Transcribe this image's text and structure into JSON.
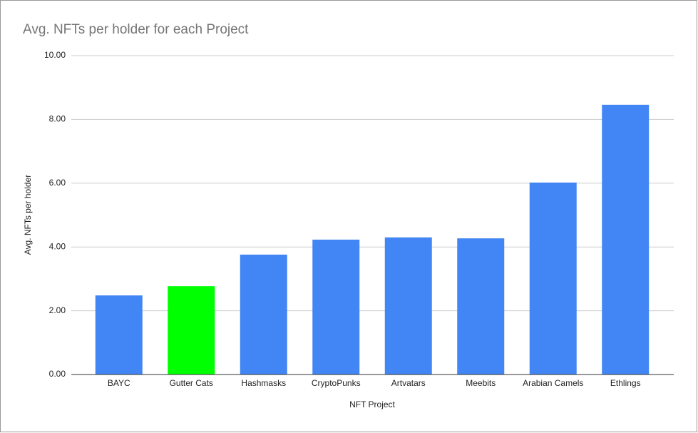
{
  "chart_data": {
    "type": "bar",
    "title": "Avg. NFTs per holder for each Project",
    "x_label": "NFT Project",
    "y_label": "Avg. NFTs per holder",
    "categories": [
      "BAYC",
      "Gutter Cats",
      "Hashmasks",
      "CryptoPunks",
      "Artvatars",
      "Meebits",
      "Arabian Camels",
      "Ethlings"
    ],
    "values": [
      2.48,
      2.77,
      3.76,
      4.23,
      4.3,
      4.27,
      6.02,
      8.46
    ],
    "colors": [
      "#4285f4",
      "#00ff00",
      "#4285f4",
      "#4285f4",
      "#4285f4",
      "#4285f4",
      "#4285f4",
      "#4285f4"
    ],
    "ylim": [
      0,
      10
    ],
    "yticks": [
      {
        "value": 0,
        "label": "0.00"
      },
      {
        "value": 2,
        "label": "2.00"
      },
      {
        "value": 4,
        "label": "4.00"
      },
      {
        "value": 6,
        "label": "6.00"
      },
      {
        "value": 8,
        "label": "8.00"
      },
      {
        "value": 10,
        "label": "10.00"
      }
    ],
    "grid": true
  }
}
